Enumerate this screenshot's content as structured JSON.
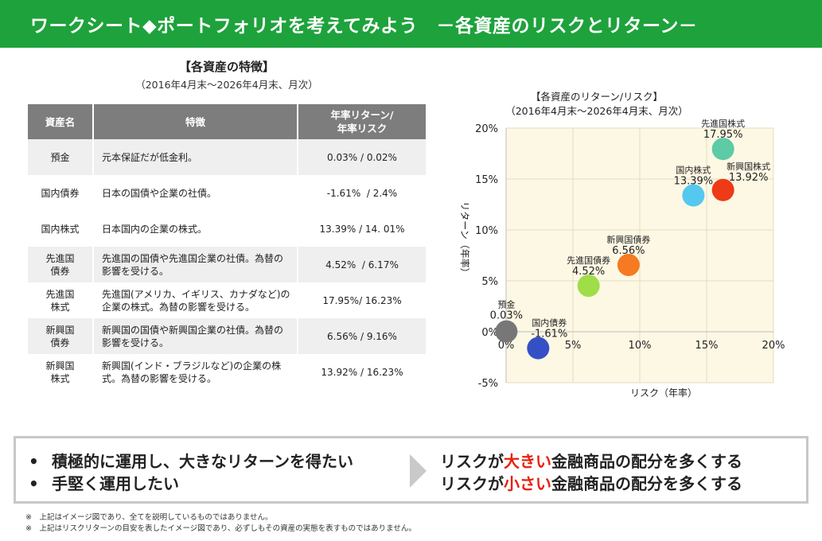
{
  "banner": {
    "title": "ワークシート◆ポートフォリオを考えてみよう　－各資産のリスクとリターン－"
  },
  "table": {
    "title": "【各資産の特徴】",
    "subtitle": "（2016年4月末～2026年4月末、月次）",
    "headers": {
      "name": "資産名",
      "feature": "特徴",
      "value_line1": "年率リターン/",
      "value_line2": "年率リスク"
    },
    "rows": [
      {
        "name_line1": "預金",
        "name_line2": "",
        "feature": "元本保証だが低金利。",
        "value": "0.03% / 0.02%"
      },
      {
        "name_line1": "国内債券",
        "name_line2": "",
        "feature": "日本の国債や企業の社債。",
        "value": "-1.61%  / 2.4%"
      },
      {
        "name_line1": "国内株式",
        "name_line2": "",
        "feature": "日本国内の企業の株式。",
        "value": "13.39% / 14. 01%"
      },
      {
        "name_line1": "先進国",
        "name_line2": "債券",
        "feature": "先進国の国債や先進国企業の社債。為替の影響を受ける。",
        "value": "4.52%  / 6.17%"
      },
      {
        "name_line1": "先進国",
        "name_line2": "株式",
        "feature": "先進国(アメリカ、イギリス、カナダなど)の企業の株式。為替の影響を受ける。",
        "value": "17.95%/ 16.23%"
      },
      {
        "name_line1": "新興国",
        "name_line2": "債券",
        "feature": "新興国の国債や新興国企業の社債。為替の影響を受ける。",
        "value": "6.56% / 9.16%"
      },
      {
        "name_line1": "新興国",
        "name_line2": "株式",
        "feature": "新興国(インド・ブラジルなど)の企業の株式。為替の影響を受ける。",
        "value": "13.92% / 16.23%"
      }
    ]
  },
  "chart_data": {
    "type": "scatter",
    "title": "【各資産のリターン/リスク】",
    "subtitle": "（2016年4月末～2026年4月末、月次）",
    "xlabel": "リスク（年率）",
    "ylabel": "リターン（年率）",
    "xlim": [
      0,
      20
    ],
    "ylim": [
      -5,
      20
    ],
    "xticks": [
      "0%",
      "5%",
      "10%",
      "15%",
      "20%"
    ],
    "yticks": [
      "-5%",
      "0%",
      "5%",
      "10%",
      "15%",
      "20%"
    ],
    "grid": true,
    "legend": "none",
    "points": [
      {
        "name": "預金",
        "value_label": "0.03%",
        "x": 0.02,
        "y": 0.03,
        "color": "#777777"
      },
      {
        "name": "国内債券",
        "value_label": "-1.61%",
        "x": 2.4,
        "y": -1.61,
        "color": "#3550c6"
      },
      {
        "name": "先進国債券",
        "value_label": "4.52%",
        "x": 6.17,
        "y": 4.52,
        "color": "#9fde48"
      },
      {
        "name": "新興国債券",
        "value_label": "6.56%",
        "x": 9.16,
        "y": 6.56,
        "color": "#f57a21"
      },
      {
        "name": "国内株式",
        "value_label": "13.39%",
        "x": 14.01,
        "y": 13.39,
        "color": "#55c8f0"
      },
      {
        "name": "新興国株式",
        "value_label": "13.92%",
        "x": 16.23,
        "y": 13.92,
        "color": "#ee3a16"
      },
      {
        "name": "先進国株式",
        "value_label": "17.95%",
        "x": 16.23,
        "y": 17.95,
        "color": "#5ccba6"
      }
    ]
  },
  "summary": {
    "bullet": "•",
    "left_line1": "積極的に運用し、大きなリターンを得たい",
    "left_line2": "手堅く運用したい",
    "right_line1_prefix": "リスクが",
    "right_line1_emph": "大きい",
    "right_line1_suffix": "金融商品の配分を多くする",
    "right_line2_prefix": "リスクが",
    "right_line2_emph": "小さい",
    "right_line2_suffix": "金融商品の配分を多くする",
    "emph_color": "#e8200c"
  },
  "notes": [
    "※　上記はイメージ図であり、全てを説明しているものではありません。",
    "※　上記はリスクリターンの目安を表したイメージ図であり、必ずしもその資産の実態を表すものではありません。"
  ]
}
